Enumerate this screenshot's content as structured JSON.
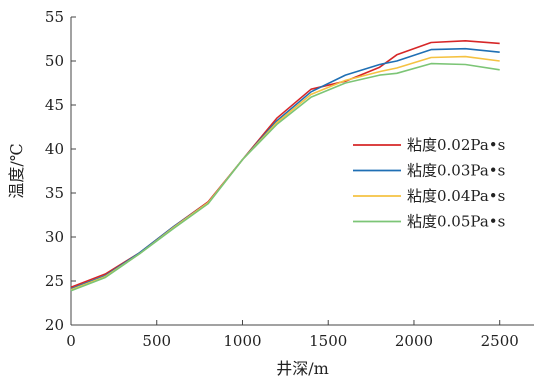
{
  "chart_data": {
    "type": "line",
    "title": "",
    "xlabel": "井深/m",
    "ylabel": "温度/℃",
    "xlim": [
      0,
      2700
    ],
    "ylim": [
      20,
      55
    ],
    "xticks": [
      0,
      500,
      1000,
      1500,
      2000,
      2500
    ],
    "yticks": [
      20,
      25,
      30,
      35,
      40,
      45,
      50,
      55
    ],
    "grid": false,
    "legend_position": "center-right",
    "x": [
      0,
      200,
      400,
      600,
      800,
      1000,
      1200,
      1400,
      1600,
      1800,
      1900,
      2100,
      2300,
      2500
    ],
    "series": [
      {
        "name": "粘度0.02Pa•s",
        "color": "#d62728",
        "values": [
          24.3,
          25.8,
          28.2,
          31.2,
          34.0,
          38.8,
          43.5,
          46.8,
          47.7,
          49.3,
          50.7,
          52.1,
          52.3,
          52.0
        ]
      },
      {
        "name": "粘度0.03Pa•s",
        "color": "#1f6fb4",
        "values": [
          24.1,
          25.6,
          28.2,
          31.2,
          33.9,
          38.8,
          43.2,
          46.5,
          48.4,
          49.6,
          50.0,
          51.3,
          51.4,
          51.0
        ]
      },
      {
        "name": "粘度0.04Pa•s",
        "color": "#f5c242",
        "values": [
          24.0,
          25.5,
          28.1,
          31.1,
          33.9,
          38.8,
          43.0,
          46.2,
          47.8,
          48.8,
          49.2,
          50.4,
          50.5,
          50.0
        ]
      },
      {
        "name": "粘度0.05Pa•s",
        "color": "#7cc576",
        "values": [
          23.9,
          25.4,
          28.1,
          31.0,
          33.8,
          38.8,
          42.8,
          45.9,
          47.5,
          48.4,
          48.6,
          49.7,
          49.6,
          49.0
        ]
      }
    ]
  }
}
